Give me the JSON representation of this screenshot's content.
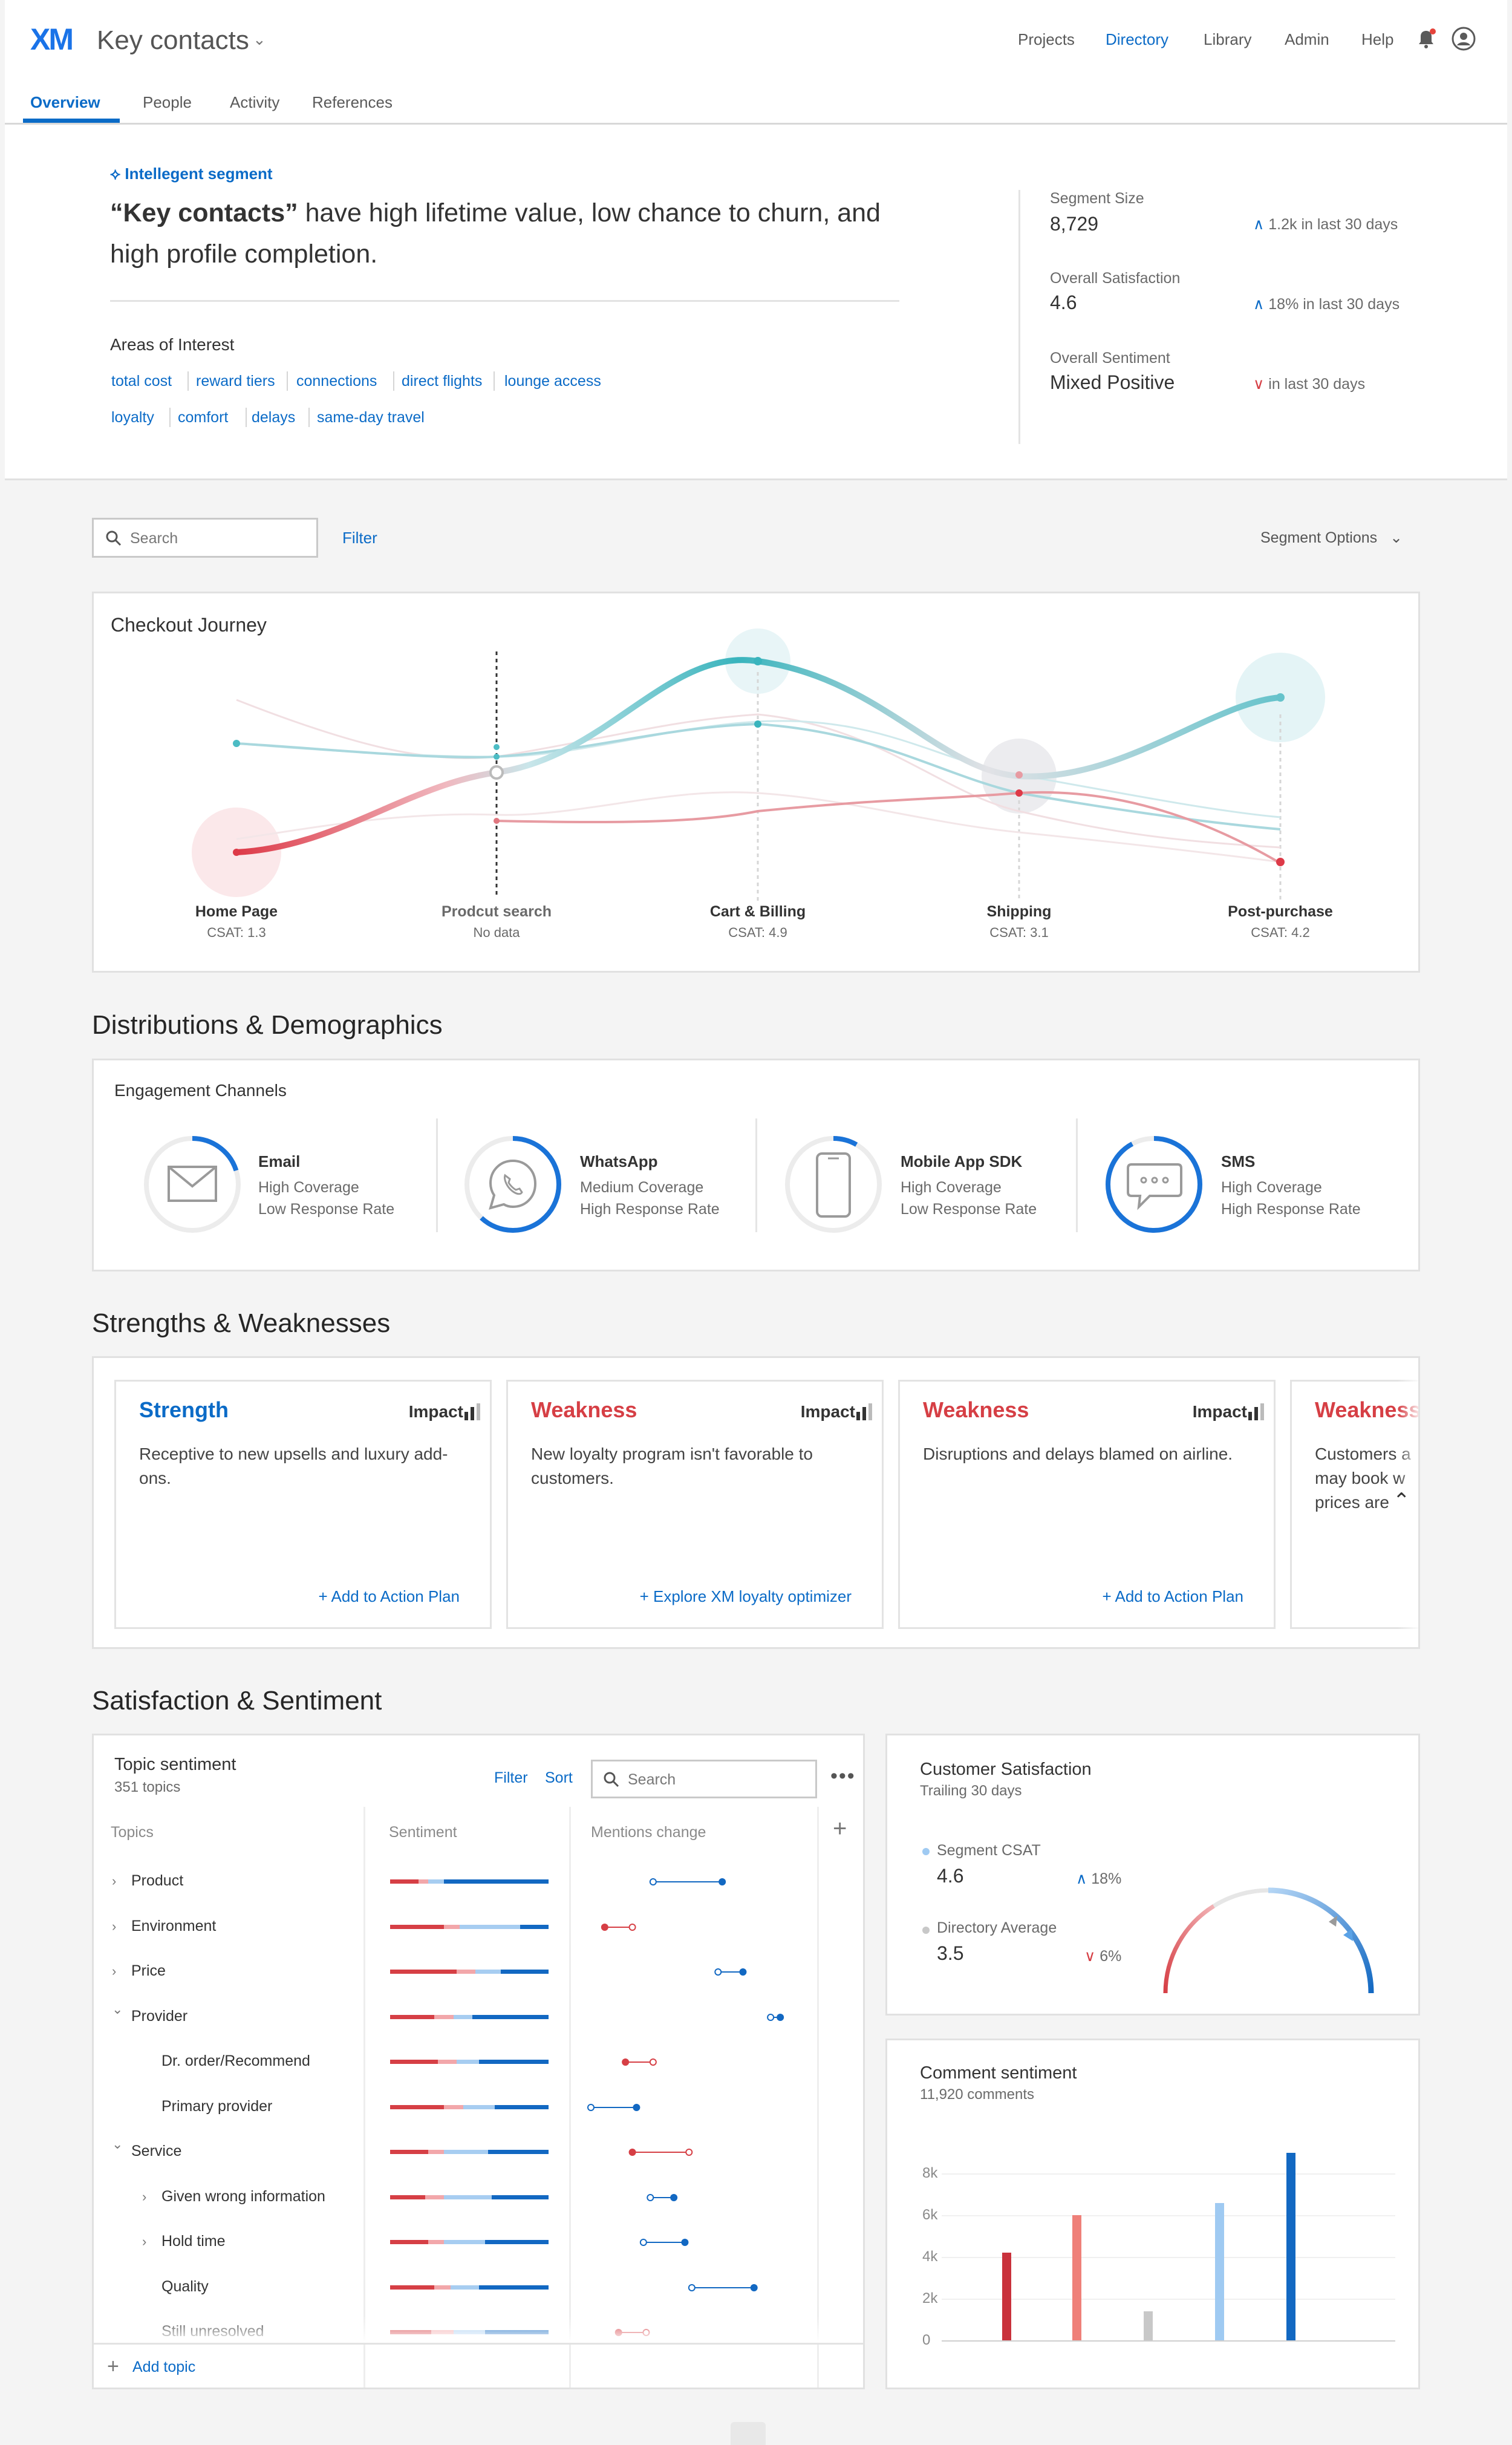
{
  "app": {
    "logo": "XM",
    "title": "Key contacts",
    "nav": [
      "Projects",
      "Directory",
      "Library",
      "Admin",
      "Help"
    ],
    "active_nav": "Directory",
    "tabs": [
      "Overview",
      "People",
      "Activity",
      "References"
    ],
    "active_tab": "Overview",
    "colors": {
      "accent": "#0b6bc7",
      "weakness": "#d63f45",
      "teal": "#4cbcc4"
    }
  },
  "hero": {
    "badge": "Intellegent segment",
    "headline_quote": "“Key contacts”",
    "headline_rest": " have high lifetime value, low chance to churn, and high profile completion.",
    "areas_title": "Areas of Interest",
    "areas": [
      "total cost",
      "reward tiers",
      "connections",
      "direct flights",
      "lounge access",
      "loyalty",
      "comfort",
      "delays",
      "same-day travel"
    ],
    "kpis": [
      {
        "label": "Segment Size",
        "value": "8,729",
        "trend": "1.2k in last 30 days",
        "direction": "up"
      },
      {
        "label": "Overall Satisfaction",
        "value": "4.6",
        "trend": "18% in last 30 days",
        "direction": "up"
      },
      {
        "label": "Overall Sentiment",
        "value": "Mixed Positive",
        "trend": "in last 30 days",
        "direction": "down"
      }
    ]
  },
  "toolbar": {
    "search_placeholder": "Search",
    "filter_label": "Filter",
    "segment_options_label": "Segment Options"
  },
  "journey": {
    "title": "Checkout Journey",
    "stages": [
      {
        "name": "Home Page",
        "csat": "CSAT: 1.3"
      },
      {
        "name": "Prodcut search",
        "csat": "No data"
      },
      {
        "name": "Cart & Billing",
        "csat": "CSAT: 4.9"
      },
      {
        "name": "Shipping",
        "csat": "CSAT: 3.1"
      },
      {
        "name": "Post-purchase",
        "csat": "CSAT: 4.2"
      }
    ]
  },
  "distributions": {
    "title": "Distributions & Demographics",
    "panel_title": "Engagement Channels",
    "channels": [
      {
        "name": "Email",
        "coverage": "High Coverage",
        "response": "Low Response Rate",
        "icon": "envelope-icon",
        "fill": 0.2
      },
      {
        "name": "WhatsApp",
        "coverage": "Medium Coverage",
        "response": "High Response Rate",
        "icon": "whatsapp-icon",
        "fill": 0.62
      },
      {
        "name": "Mobile App SDK",
        "coverage": "High Coverage",
        "response": "Low Response Rate",
        "icon": "phone-icon",
        "fill": 0.08
      },
      {
        "name": "SMS",
        "coverage": "High Coverage",
        "response": "High Response Rate",
        "icon": "chat-bubble-icon",
        "fill": 0.92
      }
    ]
  },
  "strengths": {
    "title": "Strengths & Weaknesses",
    "impact_label": "Impact",
    "cards": [
      {
        "kind": "Strength",
        "body": "Receptive to new upsells and luxury add-ons.",
        "action": "+ Add to Action Plan"
      },
      {
        "kind": "Weakness",
        "body": "New loyalty program isn't favorable to customers.",
        "action": "+ Explore XM loyalty optimizer"
      },
      {
        "kind": "Weakness",
        "body": "Disruptions and delays blamed on airline.",
        "action": "+ Add to Action Plan"
      },
      {
        "kind": "Weakness",
        "body": "Customers a may book w prices are",
        "action": ""
      }
    ]
  },
  "satisfaction": {
    "title": "Satisfaction & Sentiment",
    "topics": {
      "title": "Topic sentiment",
      "subtitle": "351 topics",
      "filter_label": "Filter",
      "sort_label": "Sort",
      "search_placeholder": "Search",
      "columns": [
        "Topics",
        "Sentiment",
        "Mentions change"
      ],
      "add_topic": "Add topic",
      "rows": [
        {
          "label": "Product",
          "level": 0,
          "chev": "›",
          "s": [
            0.18,
            0.06,
            0.1,
            0.66
          ],
          "from": 0.45,
          "to": 0.95
        },
        {
          "label": "Environment",
          "level": 0,
          "chev": "›",
          "s": [
            0.34,
            0.1,
            0.38,
            0.18
          ],
          "from": 0.3,
          "to": 0.1
        },
        {
          "label": "Price",
          "level": 0,
          "chev": "›",
          "s": [
            0.42,
            0.12,
            0.16,
            0.3
          ],
          "from": 0.92,
          "to": 1.1
        },
        {
          "label": "Provider",
          "level": 0,
          "chev": "⌄",
          "s": [
            0.28,
            0.12,
            0.12,
            0.48
          ],
          "from": 1.3,
          "to": 1.37
        },
        {
          "label": "Dr. order/Recommend",
          "level": 1,
          "chev": "",
          "s": [
            0.3,
            0.12,
            0.14,
            0.44
          ],
          "from": 0.45,
          "to": 0.25
        },
        {
          "label": "Primary provider",
          "level": 1,
          "chev": "",
          "s": [
            0.34,
            0.12,
            0.2,
            0.34
          ],
          "from": 0.0,
          "to": 0.33
        },
        {
          "label": "Service",
          "level": 0,
          "chev": "⌄",
          "s": [
            0.24,
            0.1,
            0.28,
            0.38
          ],
          "from": 0.71,
          "to": 0.3
        },
        {
          "label": "Given wrong information",
          "level": 1,
          "chev": "›",
          "s": [
            0.22,
            0.12,
            0.3,
            0.36
          ],
          "from": 0.43,
          "to": 0.6
        },
        {
          "label": "Hold time",
          "level": 1,
          "chev": "›",
          "s": [
            0.24,
            0.1,
            0.26,
            0.4
          ],
          "from": 0.38,
          "to": 0.68
        },
        {
          "label": "Quality",
          "level": 1,
          "chev": "",
          "s": [
            0.28,
            0.1,
            0.18,
            0.44
          ],
          "from": 0.73,
          "to": 1.18
        },
        {
          "label": "Still unresolved",
          "level": 1,
          "chev": "",
          "s": [
            0.26,
            0.14,
            0.2,
            0.4
          ],
          "from": 0.4,
          "to": 0.2
        }
      ]
    },
    "csat": {
      "title": "Customer Satisfaction",
      "subtitle": "Trailing 30 days",
      "segment_label": "Segment CSAT",
      "segment_value": "4.6",
      "segment_trend": "18%",
      "directory_label": "Directory Average",
      "directory_value": "3.5",
      "directory_trend": "6%"
    },
    "comments": {
      "title": "Comment sentiment",
      "subtitle": "11,920 comments"
    }
  },
  "chart_data": {
    "type": "bar",
    "categories": [
      "",
      "",
      "",
      "",
      ""
    ],
    "values": [
      4200,
      6000,
      1400,
      6600,
      9000
    ],
    "colors": [
      "#c9323c",
      "#ef8079",
      "#c8c8c8",
      "#9fcaf2",
      "#1268c2"
    ],
    "ylim": [
      0,
      9000
    ],
    "yticks": [
      "0",
      "2k",
      "4k",
      "6k",
      "8k"
    ]
  }
}
